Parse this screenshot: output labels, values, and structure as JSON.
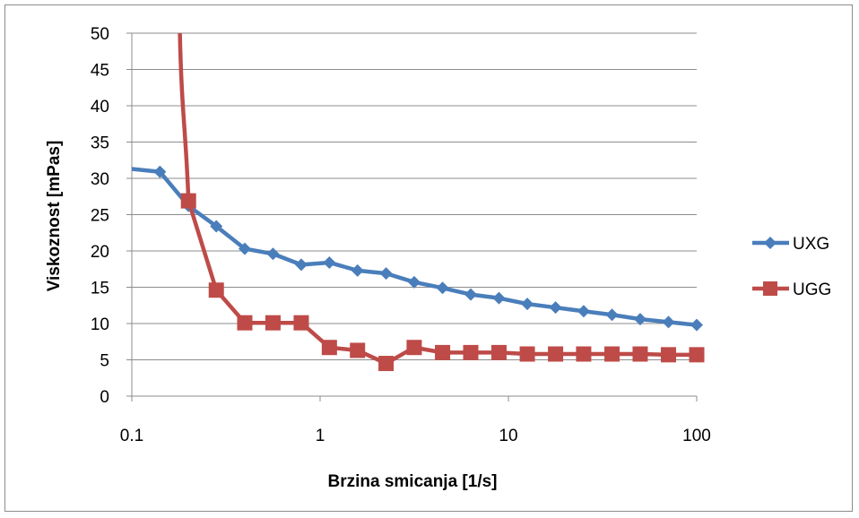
{
  "chart_data": {
    "type": "line",
    "xscale": "log",
    "xlim": [
      0.1,
      100
    ],
    "ylim": [
      0,
      50
    ],
    "xticks": [
      "0.1",
      "1",
      "10",
      "100"
    ],
    "yticks": [
      "0",
      "5",
      "10",
      "15",
      "20",
      "25",
      "30",
      "35",
      "40",
      "45",
      "50"
    ],
    "xlabel": "Brzina smicanja  [1/s]",
    "ylabel": "Viskoznost  [mPas]",
    "grid": "horizontal",
    "legend_position": "right",
    "series": [
      {
        "name": "UXG",
        "color": "#4a7ebb",
        "marker": "diamond",
        "x": [
          0.1,
          0.141,
          0.2,
          0.281,
          0.398,
          0.562,
          0.794,
          1.12,
          1.58,
          2.24,
          3.16,
          4.47,
          6.31,
          8.91,
          12.6,
          17.8,
          25.1,
          35.5,
          50.1,
          70.8,
          100
        ],
        "y": [
          31.3,
          30.9,
          26.2,
          23.4,
          20.3,
          19.6,
          18.1,
          18.4,
          17.3,
          16.9,
          15.7,
          14.9,
          14.0,
          13.5,
          12.7,
          12.2,
          11.7,
          11.2,
          10.6,
          10.2,
          9.8
        ]
      },
      {
        "name": "UGG",
        "color": "#be4b48",
        "marker": "square",
        "x": [
          0.2,
          0.281,
          0.398,
          0.562,
          0.794,
          1.12,
          1.58,
          2.24,
          3.16,
          4.47,
          6.31,
          8.91,
          12.6,
          17.8,
          25.1,
          35.5,
          50.1,
          70.8,
          100
        ],
        "y": [
          26.9,
          14.6,
          10.1,
          10.1,
          10.1,
          6.7,
          6.3,
          4.5,
          6.7,
          6.0,
          6.0,
          6.0,
          5.8,
          5.8,
          5.8,
          5.8,
          5.8,
          5.7,
          5.7
        ],
        "leading_curve": {
          "x": [
            0.18,
            0.2
          ],
          "y": [
            50,
            26.9
          ]
        }
      }
    ]
  }
}
